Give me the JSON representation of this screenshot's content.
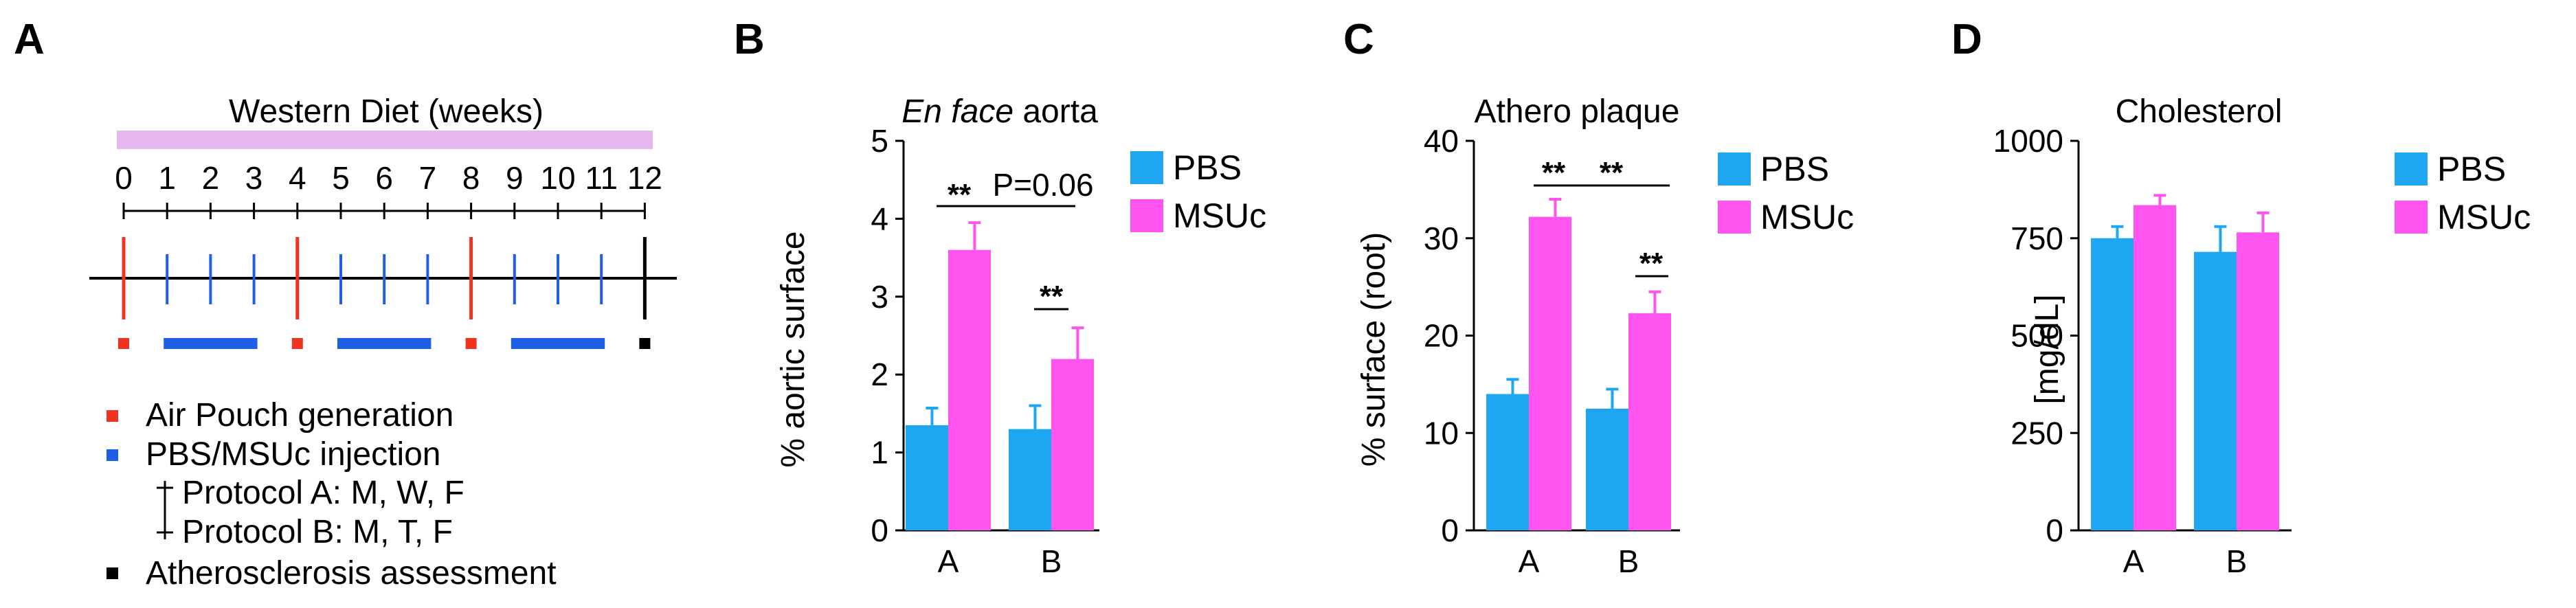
{
  "colors": {
    "pbs": "#1ea7f0",
    "msuc": "#ff55ee",
    "diet_bar": "#e7b8ef",
    "pouch": "#ee3322",
    "injection": "#1f5fe6",
    "assessment": "#000000"
  },
  "panel_a": {
    "label": "A",
    "title": "Western Diet (weeks)",
    "weeks": [
      "0",
      "1",
      "2",
      "3",
      "4",
      "5",
      "6",
      "7",
      "8",
      "9",
      "10",
      "11",
      "12"
    ],
    "legend": {
      "pouch": "Air Pouch generation",
      "injection": "PBS/MSUc injection",
      "protocol_a": "Protocol A: M, W, F",
      "protocol_b": "Protocol B: M, T, F",
      "assessment": "Atherosclerosis assessment"
    }
  },
  "chart_data": [
    {
      "panel": "B",
      "type": "bar",
      "title_italic": "En face",
      "title_rest": " aorta",
      "ylabel": "% aortic surface",
      "ylim": [
        0,
        5
      ],
      "yticks": [
        "0",
        "1",
        "2",
        "3",
        "4",
        "5"
      ],
      "categories": [
        "A",
        "B"
      ],
      "series": [
        {
          "name": "PBS",
          "values": [
            1.35,
            1.3
          ],
          "errors": [
            0.22,
            0.3
          ]
        },
        {
          "name": "MSUc",
          "values": [
            3.6,
            2.2
          ],
          "errors": [
            0.35,
            0.4
          ]
        }
      ],
      "annotations": [
        "**",
        "P=0.06",
        "**"
      ]
    },
    {
      "panel": "C",
      "type": "bar",
      "title": "Athero plaque",
      "ylabel": "% surface (root)",
      "ylim": [
        0,
        40
      ],
      "yticks": [
        "0",
        "10",
        "20",
        "30",
        "40"
      ],
      "categories": [
        "A",
        "B"
      ],
      "series": [
        {
          "name": "PBS",
          "values": [
            14,
            12.5
          ],
          "errors": [
            1.5,
            2
          ]
        },
        {
          "name": "MSUc",
          "values": [
            32.2,
            22.3
          ],
          "errors": [
            1.8,
            2.2
          ]
        }
      ],
      "annotations": [
        "**",
        "**",
        "**"
      ]
    },
    {
      "panel": "D",
      "type": "bar",
      "title": "Cholesterol",
      "ylabel": "[mg/dL]",
      "ylim": [
        0,
        1000
      ],
      "yticks": [
        "0",
        "250",
        "500",
        "750",
        "1000"
      ],
      "categories": [
        "A",
        "B"
      ],
      "series": [
        {
          "name": "PBS",
          "values": [
            750,
            715
          ],
          "errors": [
            30,
            65
          ]
        },
        {
          "name": "MSUc",
          "values": [
            835,
            765
          ],
          "errors": [
            25,
            50
          ]
        }
      ],
      "annotations": []
    }
  ]
}
